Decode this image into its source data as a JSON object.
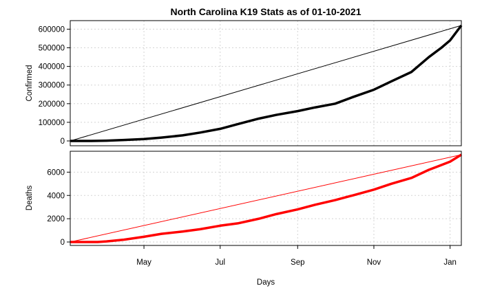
{
  "chart_data": {
    "type": "line",
    "title": "North Carolina K19 Stats as of 01-10-2021",
    "xlabel": "Days",
    "x_tick_labels": [
      "May",
      "Jul",
      "Sep",
      "Nov",
      "Jan"
    ],
    "x_tick_dates": [
      "2020-05-01",
      "2020-07-01",
      "2020-09-01",
      "2020-11-01",
      "2021-01-01"
    ],
    "xlim": [
      "2020-03-03",
      "2021-01-10"
    ],
    "grid": true,
    "panels": [
      {
        "ylabel": "Confirmed",
        "ylim": [
          0,
          620000
        ],
        "y_ticks": [
          0,
          100000,
          200000,
          300000,
          400000,
          500000,
          600000
        ],
        "y_tick_labels": [
          "0",
          "100000",
          "200000",
          "300000",
          "400000",
          "500000",
          "600000"
        ],
        "color": "#000000",
        "series": {
          "x": [
            "2020-03-03",
            "2020-03-20",
            "2020-04-01",
            "2020-04-15",
            "2020-05-01",
            "2020-05-15",
            "2020-06-01",
            "2020-06-15",
            "2020-07-01",
            "2020-07-15",
            "2020-08-01",
            "2020-08-15",
            "2020-09-01",
            "2020-09-15",
            "2020-10-01",
            "2020-10-15",
            "2020-11-01",
            "2020-11-15",
            "2020-12-01",
            "2020-12-15",
            "2020-12-25",
            "2021-01-01",
            "2021-01-10"
          ],
          "y": [
            0,
            100,
            1500,
            5000,
            10000,
            18000,
            30000,
            45000,
            65000,
            90000,
            120000,
            140000,
            160000,
            180000,
            200000,
            235000,
            275000,
            320000,
            370000,
            450000,
            500000,
            540000,
            620000
          ]
        },
        "reference_line": {
          "from": [
            "2020-03-03",
            0
          ],
          "to": [
            "2021-01-10",
            620000
          ]
        }
      },
      {
        "ylabel": "Deaths",
        "ylim": [
          0,
          7500
        ],
        "y_ticks": [
          0,
          2000,
          4000,
          6000
        ],
        "y_tick_labels": [
          "0",
          "2000",
          "4000",
          "6000"
        ],
        "color": "#ff0000",
        "series": {
          "x": [
            "2020-03-03",
            "2020-03-25",
            "2020-04-01",
            "2020-04-15",
            "2020-05-01",
            "2020-05-15",
            "2020-06-01",
            "2020-06-15",
            "2020-07-01",
            "2020-07-15",
            "2020-08-01",
            "2020-08-15",
            "2020-09-01",
            "2020-09-15",
            "2020-10-01",
            "2020-10-15",
            "2020-11-01",
            "2020-11-15",
            "2020-12-01",
            "2020-12-15",
            "2021-01-01",
            "2021-01-10"
          ],
          "y": [
            0,
            0,
            50,
            200,
            450,
            700,
            900,
            1100,
            1400,
            1600,
            2000,
            2400,
            2800,
            3200,
            3600,
            4000,
            4500,
            5000,
            5500,
            6200,
            6900,
            7500
          ]
        },
        "reference_line": {
          "from": [
            "2020-03-03",
            0
          ],
          "to": [
            "2021-01-10",
            7500
          ]
        }
      }
    ]
  }
}
